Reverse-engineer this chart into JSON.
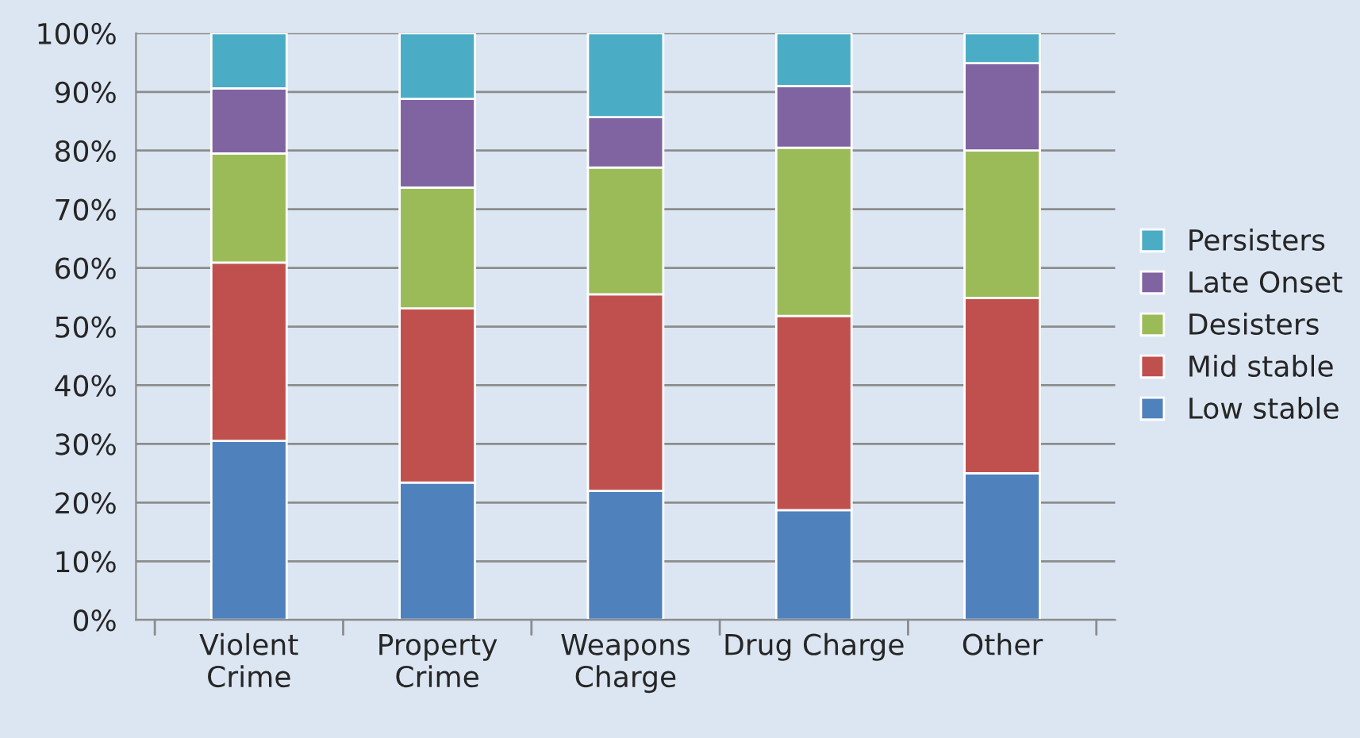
{
  "chart_data": {
    "type": "bar",
    "stacked": true,
    "categories": [
      "Violent\nCrime",
      "Property\nCrime",
      "Weapons\nCharge",
      "Drug Charge",
      "Other"
    ],
    "series": [
      {
        "name": "Low stable",
        "color": "#4f81bd",
        "values": [
          30.5,
          23.4,
          22.0,
          18.7,
          25.0
        ]
      },
      {
        "name": "Mid stable",
        "color": "#c0504d",
        "values": [
          30.4,
          29.7,
          33.5,
          33.1,
          29.9
        ]
      },
      {
        "name": "Desisters",
        "color": "#9bbb59",
        "values": [
          18.6,
          20.6,
          21.6,
          28.7,
          25.1
        ]
      },
      {
        "name": "Late Onset",
        "color": "#8064a2",
        "values": [
          11.1,
          15.1,
          8.6,
          10.5,
          14.9
        ]
      },
      {
        "name": "Persisters",
        "color": "#4bacc6",
        "values": [
          9.4,
          11.2,
          14.3,
          9.0,
          5.1
        ]
      }
    ],
    "ylim": [
      0,
      100
    ],
    "yticks": [
      {
        "value": 0,
        "label": "0%"
      },
      {
        "value": 10,
        "label": "10%"
      },
      {
        "value": 20,
        "label": "20%"
      },
      {
        "value": 30,
        "label": "30%"
      },
      {
        "value": 40,
        "label": "40%"
      },
      {
        "value": 50,
        "label": "50%"
      },
      {
        "value": 60,
        "label": "60%"
      },
      {
        "value": 70,
        "label": "70%"
      },
      {
        "value": 80,
        "label": "80%"
      },
      {
        "value": 90,
        "label": "90%"
      },
      {
        "value": 100,
        "label": "100%"
      }
    ],
    "grid": "y",
    "legend": "right"
  }
}
